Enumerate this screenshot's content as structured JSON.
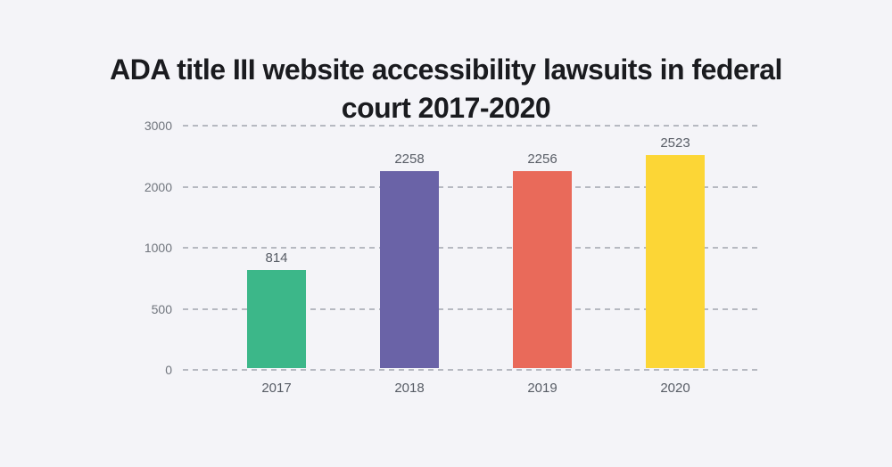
{
  "page": {
    "background": "#f4f4f8"
  },
  "title": {
    "text": "ADA title III website accessibility lawsuits in federal court 2017-2020",
    "line1": "ADA title III website accessibility lawsuits in federal",
    "line2": "court 2017-2020",
    "color": "#1a1b1f"
  },
  "chart_data": {
    "type": "bar",
    "title": "ADA title III website accessibility lawsuits in federal court 2017-2020",
    "categories": [
      "2017",
      "2018",
      "2019",
      "2020"
    ],
    "values": [
      814,
      2258,
      2256,
      2523
    ],
    "value_labels": [
      "814",
      "2258",
      "2256",
      "2523"
    ],
    "bar_colors": [
      "#3cb789",
      "#6a63a7",
      "#e96a5a",
      "#fcd636"
    ],
    "y_ticks": [
      3000,
      2000,
      1000,
      500,
      0
    ],
    "ylim": [
      0,
      3000
    ],
    "xlabel": "",
    "ylabel": "",
    "grid": "horizontal-dashed",
    "legend": "none",
    "axis_note": "y ticks are evenly spaced on screen despite non-linear values (3000, 2000, 1000, 500, 0)"
  },
  "style": {
    "grid_color": "#b6b9c1",
    "tick_label_color": "#70757d",
    "value_label_color": "#575c65",
    "category_label_color": "#575c65"
  }
}
